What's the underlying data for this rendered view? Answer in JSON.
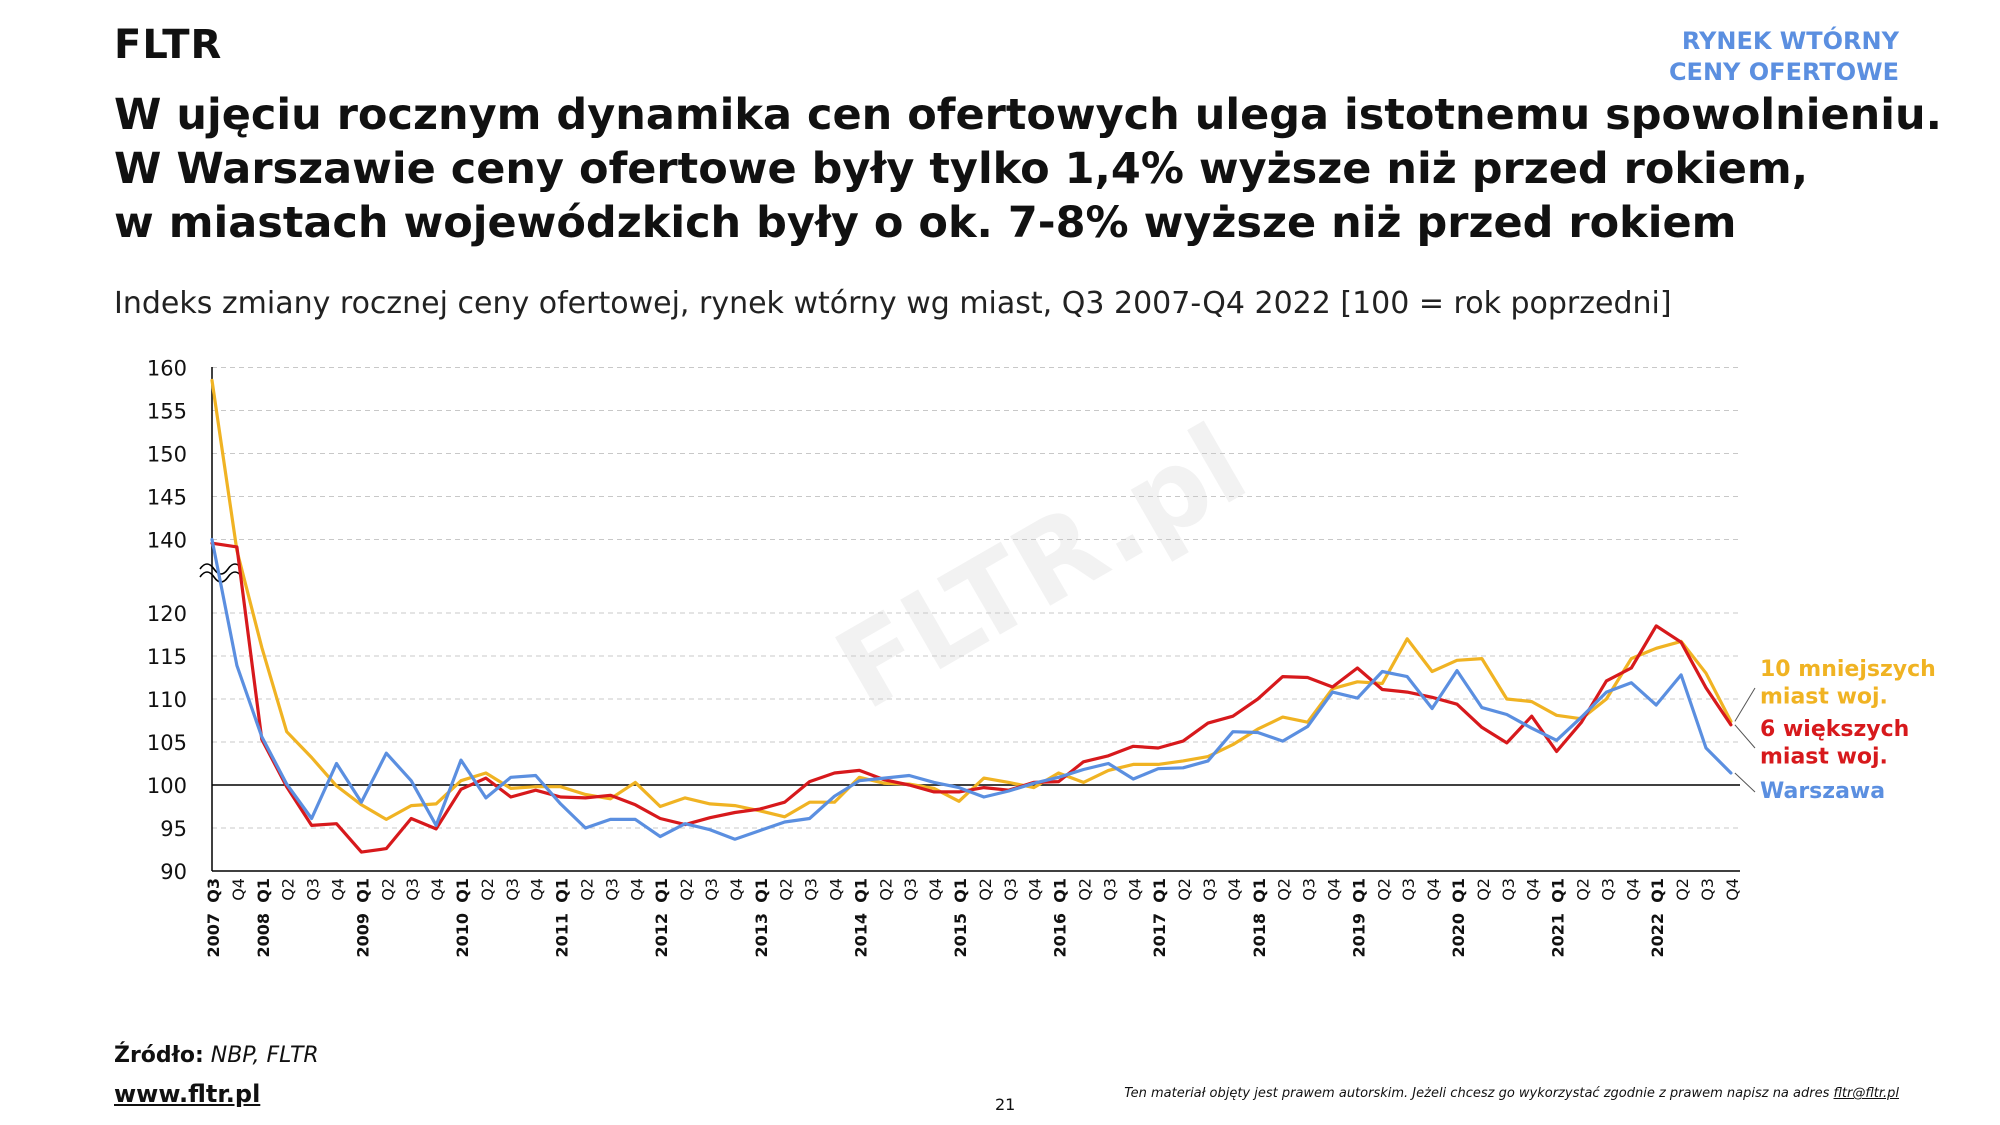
{
  "brand": "FLTR",
  "tag": {
    "line1": "RYNEK WTÓRNY",
    "line2": "CENY OFERTOWE"
  },
  "headline": [
    "W ujęciu rocznym dynamika cen ofertowych ulega istotnemu spowolnieniu.",
    "W Warszawie ceny ofertowe były tylko 1,4% wyższe niż przed rokiem,",
    "w miastach wojewódzkich były o ok. 7-8% wyższe niż przed rokiem"
  ],
  "subtitle": "Indeks zmiany rocznej ceny ofertowej, rynek wtórny wg miast, Q3 2007-Q4 2022 [100 = rok poprzedni]",
  "watermark": "FLTR.pl",
  "footer": {
    "source_label": "Źródło:",
    "source_value": "NBP, FLTR",
    "website": "www.fltr.pl",
    "page_number": "21",
    "copyright_text": "Ten materiał objęty jest prawem autorskim. Jeżeli chcesz go wykorzystać zgodnie z prawem napisz na adres ",
    "copyright_email": "fltr@fltr.pl"
  },
  "colors": {
    "yellow": "#f0b323",
    "red": "#d7191c",
    "blue": "#5b8fe0",
    "grid": "#c8c8c8"
  },
  "chart_data": {
    "type": "line",
    "title": "Indeks zmiany rocznej ceny ofertowej, rynek wtórny wg miast, Q3 2007-Q4 2022 [100 = rok poprzedni]",
    "ylim": [
      90,
      160
    ],
    "axis_break": [
      120,
      140
    ],
    "yticks": [
      90,
      95,
      100,
      105,
      110,
      115,
      120,
      140,
      145,
      150,
      155,
      160
    ],
    "reference_line": 100,
    "grid": true,
    "legend": "right, labels at line ends",
    "categories": [
      {
        "quarter": "Q3",
        "year": "2007"
      },
      {
        "quarter": "Q4",
        "year": ""
      },
      {
        "quarter": "Q1",
        "year": "2008"
      },
      {
        "quarter": "Q2",
        "year": ""
      },
      {
        "quarter": "Q3",
        "year": ""
      },
      {
        "quarter": "Q4",
        "year": ""
      },
      {
        "quarter": "Q1",
        "year": "2009"
      },
      {
        "quarter": "Q2",
        "year": ""
      },
      {
        "quarter": "Q3",
        "year": ""
      },
      {
        "quarter": "Q4",
        "year": ""
      },
      {
        "quarter": "Q1",
        "year": "2010"
      },
      {
        "quarter": "Q2",
        "year": ""
      },
      {
        "quarter": "Q3",
        "year": ""
      },
      {
        "quarter": "Q4",
        "year": ""
      },
      {
        "quarter": "Q1",
        "year": "2011"
      },
      {
        "quarter": "Q2",
        "year": ""
      },
      {
        "quarter": "Q3",
        "year": ""
      },
      {
        "quarter": "Q4",
        "year": ""
      },
      {
        "quarter": "Q1",
        "year": "2012"
      },
      {
        "quarter": "Q2",
        "year": ""
      },
      {
        "quarter": "Q3",
        "year": ""
      },
      {
        "quarter": "Q4",
        "year": ""
      },
      {
        "quarter": "Q1",
        "year": "2013"
      },
      {
        "quarter": "Q2",
        "year": ""
      },
      {
        "quarter": "Q3",
        "year": ""
      },
      {
        "quarter": "Q4",
        "year": ""
      },
      {
        "quarter": "Q1",
        "year": "2014"
      },
      {
        "quarter": "Q2",
        "year": ""
      },
      {
        "quarter": "Q3",
        "year": ""
      },
      {
        "quarter": "Q4",
        "year": ""
      },
      {
        "quarter": "Q1",
        "year": "2015"
      },
      {
        "quarter": "Q2",
        "year": ""
      },
      {
        "quarter": "Q3",
        "year": ""
      },
      {
        "quarter": "Q4",
        "year": ""
      },
      {
        "quarter": "Q1",
        "year": "2016"
      },
      {
        "quarter": "Q2",
        "year": ""
      },
      {
        "quarter": "Q3",
        "year": ""
      },
      {
        "quarter": "Q4",
        "year": ""
      },
      {
        "quarter": "Q1",
        "year": "2017"
      },
      {
        "quarter": "Q2",
        "year": ""
      },
      {
        "quarter": "Q3",
        "year": ""
      },
      {
        "quarter": "Q4",
        "year": ""
      },
      {
        "quarter": "Q1",
        "year": "2018"
      },
      {
        "quarter": "Q2",
        "year": ""
      },
      {
        "quarter": "Q3",
        "year": ""
      },
      {
        "quarter": "Q4",
        "year": ""
      },
      {
        "quarter": "Q1",
        "year": "2019"
      },
      {
        "quarter": "Q2",
        "year": ""
      },
      {
        "quarter": "Q3",
        "year": ""
      },
      {
        "quarter": "Q4",
        "year": ""
      },
      {
        "quarter": "Q1",
        "year": "2020"
      },
      {
        "quarter": "Q2",
        "year": ""
      },
      {
        "quarter": "Q3",
        "year": ""
      },
      {
        "quarter": "Q4",
        "year": ""
      },
      {
        "quarter": "Q1",
        "year": "2021"
      },
      {
        "quarter": "Q2",
        "year": ""
      },
      {
        "quarter": "Q3",
        "year": ""
      },
      {
        "quarter": "Q4",
        "year": ""
      },
      {
        "quarter": "Q1",
        "year": "2022"
      },
      {
        "quarter": "Q2",
        "year": ""
      },
      {
        "quarter": "Q3",
        "year": ""
      },
      {
        "quarter": "Q4",
        "year": ""
      }
    ],
    "series": [
      {
        "name": "10 mniejszych miast woj.",
        "legend_lines": [
          "10 mniejszych",
          "miast woj."
        ],
        "color": "#f0b323",
        "values": [
          158.5,
          137,
          116,
          106.2,
          103.2,
          99.9,
          97.7,
          96.0,
          97.6,
          97.8,
          100.5,
          101.4,
          99.6,
          99.8,
          99.8,
          98.9,
          98.4,
          100.3,
          97.5,
          98.5,
          97.8,
          97.6,
          97.0,
          96.3,
          98.0,
          98.0,
          100.9,
          100.2,
          100.1,
          99.6,
          98.1,
          100.8,
          100.3,
          99.7,
          101.4,
          100.3,
          101.7,
          102.4,
          102.4,
          102.8,
          103.3,
          104.7,
          106.5,
          107.9,
          107.3,
          111.2,
          112.0,
          111.8,
          117.0,
          113.2,
          114.5,
          114.7,
          110.0,
          109.7,
          108.1,
          107.7,
          110.0,
          114.7,
          115.9,
          116.7,
          113.0,
          107.4
        ]
      },
      {
        "name": "6 większych miast woj.",
        "legend_lines": [
          "6 większych",
          "miast woj."
        ],
        "color": "#d7191c",
        "values": [
          139,
          138,
          105.3,
          99.8,
          95.3,
          95.5,
          92.2,
          92.6,
          96.1,
          94.9,
          99.5,
          100.8,
          98.6,
          99.4,
          98.6,
          98.5,
          98.8,
          97.7,
          96.1,
          95.4,
          96.2,
          96.8,
          97.2,
          98.0,
          100.4,
          101.4,
          101.7,
          100.6,
          100.0,
          99.2,
          99.2,
          99.7,
          99.4,
          100.3,
          100.4,
          102.7,
          103.4,
          104.5,
          104.3,
          105.1,
          107.2,
          108.0,
          110.0,
          112.6,
          112.5,
          111.4,
          113.6,
          111.1,
          110.8,
          110.2,
          109.4,
          106.7,
          104.9,
          108.0,
          103.9,
          107.3,
          112.1,
          113.6,
          118.5,
          116.6,
          111.3,
          107.0
        ]
      },
      {
        "name": "Warszawa",
        "legend_lines": [
          "Warszawa"
        ],
        "color": "#5b8fe0",
        "values": [
          140,
          113.9,
          105.6,
          100.1,
          96.1,
          102.5,
          98.0,
          103.7,
          100.5,
          95.3,
          102.9,
          98.5,
          100.9,
          101.1,
          97.8,
          95.0,
          96.0,
          96.0,
          94.0,
          95.5,
          94.8,
          93.7,
          94.7,
          95.7,
          96.1,
          98.7,
          100.5,
          100.8,
          101.1,
          100.3,
          99.7,
          98.6,
          99.3,
          100.2,
          100.9,
          101.8,
          102.5,
          100.7,
          101.9,
          102.0,
          102.8,
          106.2,
          106.1,
          105.1,
          106.8,
          110.8,
          110.1,
          113.2,
          112.6,
          108.9,
          113.3,
          109.0,
          108.2,
          106.6,
          105.2,
          107.9,
          110.8,
          111.9,
          109.3,
          112.8,
          104.3,
          101.4
        ]
      }
    ]
  }
}
